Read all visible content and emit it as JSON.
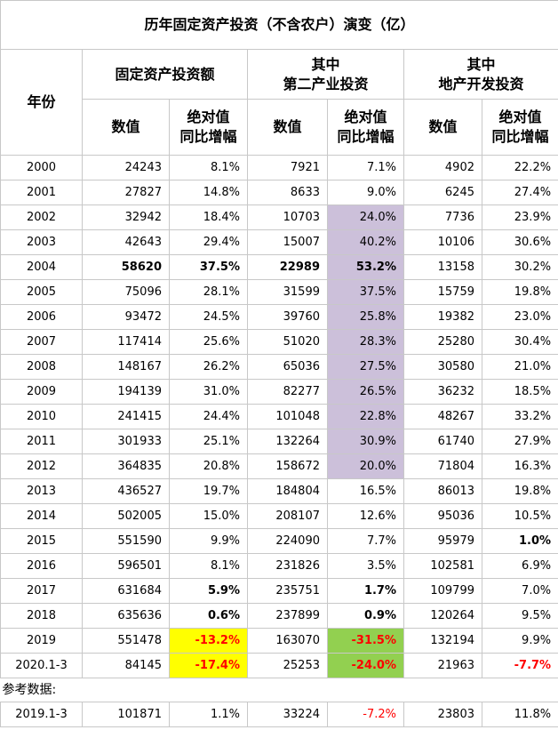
{
  "title": "历年固定资产投资（不含农户）演变（亿）",
  "header": {
    "year": "年份",
    "fixed_investment": "固定资产投资额",
    "secondary_line1": "其中",
    "secondary_line2": "第二产业投资",
    "realestate_line1": "其中",
    "realestate_line2": "地产开发投资",
    "value": "数值",
    "growth_line1": "绝对值",
    "growth_line2": "同比增幅"
  },
  "rows": [
    {
      "year": "2000",
      "fi": "24243",
      "fi_g": "8.1%",
      "sec": "7921",
      "sec_g": "7.1%",
      "re": "4902",
      "re_g": "22.2%"
    },
    {
      "year": "2001",
      "fi": "27827",
      "fi_g": "14.8%",
      "sec": "8633",
      "sec_g": "9.0%",
      "re": "6245",
      "re_g": "27.4%"
    },
    {
      "year": "2002",
      "fi": "32942",
      "fi_g": "18.4%",
      "sec": "10703",
      "sec_g": "24.0%",
      "re": "7736",
      "re_g": "23.9%"
    },
    {
      "year": "2003",
      "fi": "42643",
      "fi_g": "29.4%",
      "sec": "15007",
      "sec_g": "40.2%",
      "re": "10106",
      "re_g": "30.6%"
    },
    {
      "year": "2004",
      "fi": "58620",
      "fi_g": "37.5%",
      "sec": "22989",
      "sec_g": "53.2%",
      "re": "13158",
      "re_g": "30.2%"
    },
    {
      "year": "2005",
      "fi": "75096",
      "fi_g": "28.1%",
      "sec": "31599",
      "sec_g": "37.5%",
      "re": "15759",
      "re_g": "19.8%"
    },
    {
      "year": "2006",
      "fi": "93472",
      "fi_g": "24.5%",
      "sec": "39760",
      "sec_g": "25.8%",
      "re": "19382",
      "re_g": "23.0%"
    },
    {
      "year": "2007",
      "fi": "117414",
      "fi_g": "25.6%",
      "sec": "51020",
      "sec_g": "28.3%",
      "re": "25280",
      "re_g": "30.4%"
    },
    {
      "year": "2008",
      "fi": "148167",
      "fi_g": "26.2%",
      "sec": "65036",
      "sec_g": "27.5%",
      "re": "30580",
      "re_g": "21.0%"
    },
    {
      "year": "2009",
      "fi": "194139",
      "fi_g": "31.0%",
      "sec": "82277",
      "sec_g": "26.5%",
      "re": "36232",
      "re_g": "18.5%"
    },
    {
      "year": "2010",
      "fi": "241415",
      "fi_g": "24.4%",
      "sec": "101048",
      "sec_g": "22.8%",
      "re": "48267",
      "re_g": "33.2%"
    },
    {
      "year": "2011",
      "fi": "301933",
      "fi_g": "25.1%",
      "sec": "132264",
      "sec_g": "30.9%",
      "re": "61740",
      "re_g": "27.9%"
    },
    {
      "year": "2012",
      "fi": "364835",
      "fi_g": "20.8%",
      "sec": "158672",
      "sec_g": "20.0%",
      "re": "71804",
      "re_g": "16.3%"
    },
    {
      "year": "2013",
      "fi": "436527",
      "fi_g": "19.7%",
      "sec": "184804",
      "sec_g": "16.5%",
      "re": "86013",
      "re_g": "19.8%"
    },
    {
      "year": "2014",
      "fi": "502005",
      "fi_g": "15.0%",
      "sec": "208107",
      "sec_g": "12.6%",
      "re": "95036",
      "re_g": "10.5%"
    },
    {
      "year": "2015",
      "fi": "551590",
      "fi_g": "9.9%",
      "sec": "224090",
      "sec_g": "7.7%",
      "re": "95979",
      "re_g": "1.0%"
    },
    {
      "year": "2016",
      "fi": "596501",
      "fi_g": "8.1%",
      "sec": "231826",
      "sec_g": "3.5%",
      "re": "102581",
      "re_g": "6.9%"
    },
    {
      "year": "2017",
      "fi": "631684",
      "fi_g": "5.9%",
      "sec": "235751",
      "sec_g": "1.7%",
      "re": "109799",
      "re_g": "7.0%"
    },
    {
      "year": "2018",
      "fi": "635636",
      "fi_g": "0.6%",
      "sec": "237899",
      "sec_g": "0.9%",
      "re": "120264",
      "re_g": "9.5%"
    },
    {
      "year": "2019",
      "fi": "551478",
      "fi_g": "-13.2%",
      "sec": "163070",
      "sec_g": "-31.5%",
      "re": "132194",
      "re_g": "9.9%"
    },
    {
      "year": "2020.1-3",
      "fi": "84145",
      "fi_g": "-17.4%",
      "sec": "25253",
      "sec_g": "-24.0%",
      "re": "21963",
      "re_g": "-7.7%"
    }
  ],
  "reference_label": "参考数据:",
  "reference_row": {
    "year": "2019.1-3",
    "fi": "101871",
    "fi_g": "1.1%",
    "sec": "33224",
    "sec_g": "-7.2%",
    "re": "23803",
    "re_g": "11.8%"
  },
  "colors": {
    "highlight_purple": "#ccc0da",
    "highlight_yellow": "#ffff00",
    "highlight_green": "#92d050",
    "negative_red": "#ff0000",
    "grid": "#c8c8c8"
  }
}
